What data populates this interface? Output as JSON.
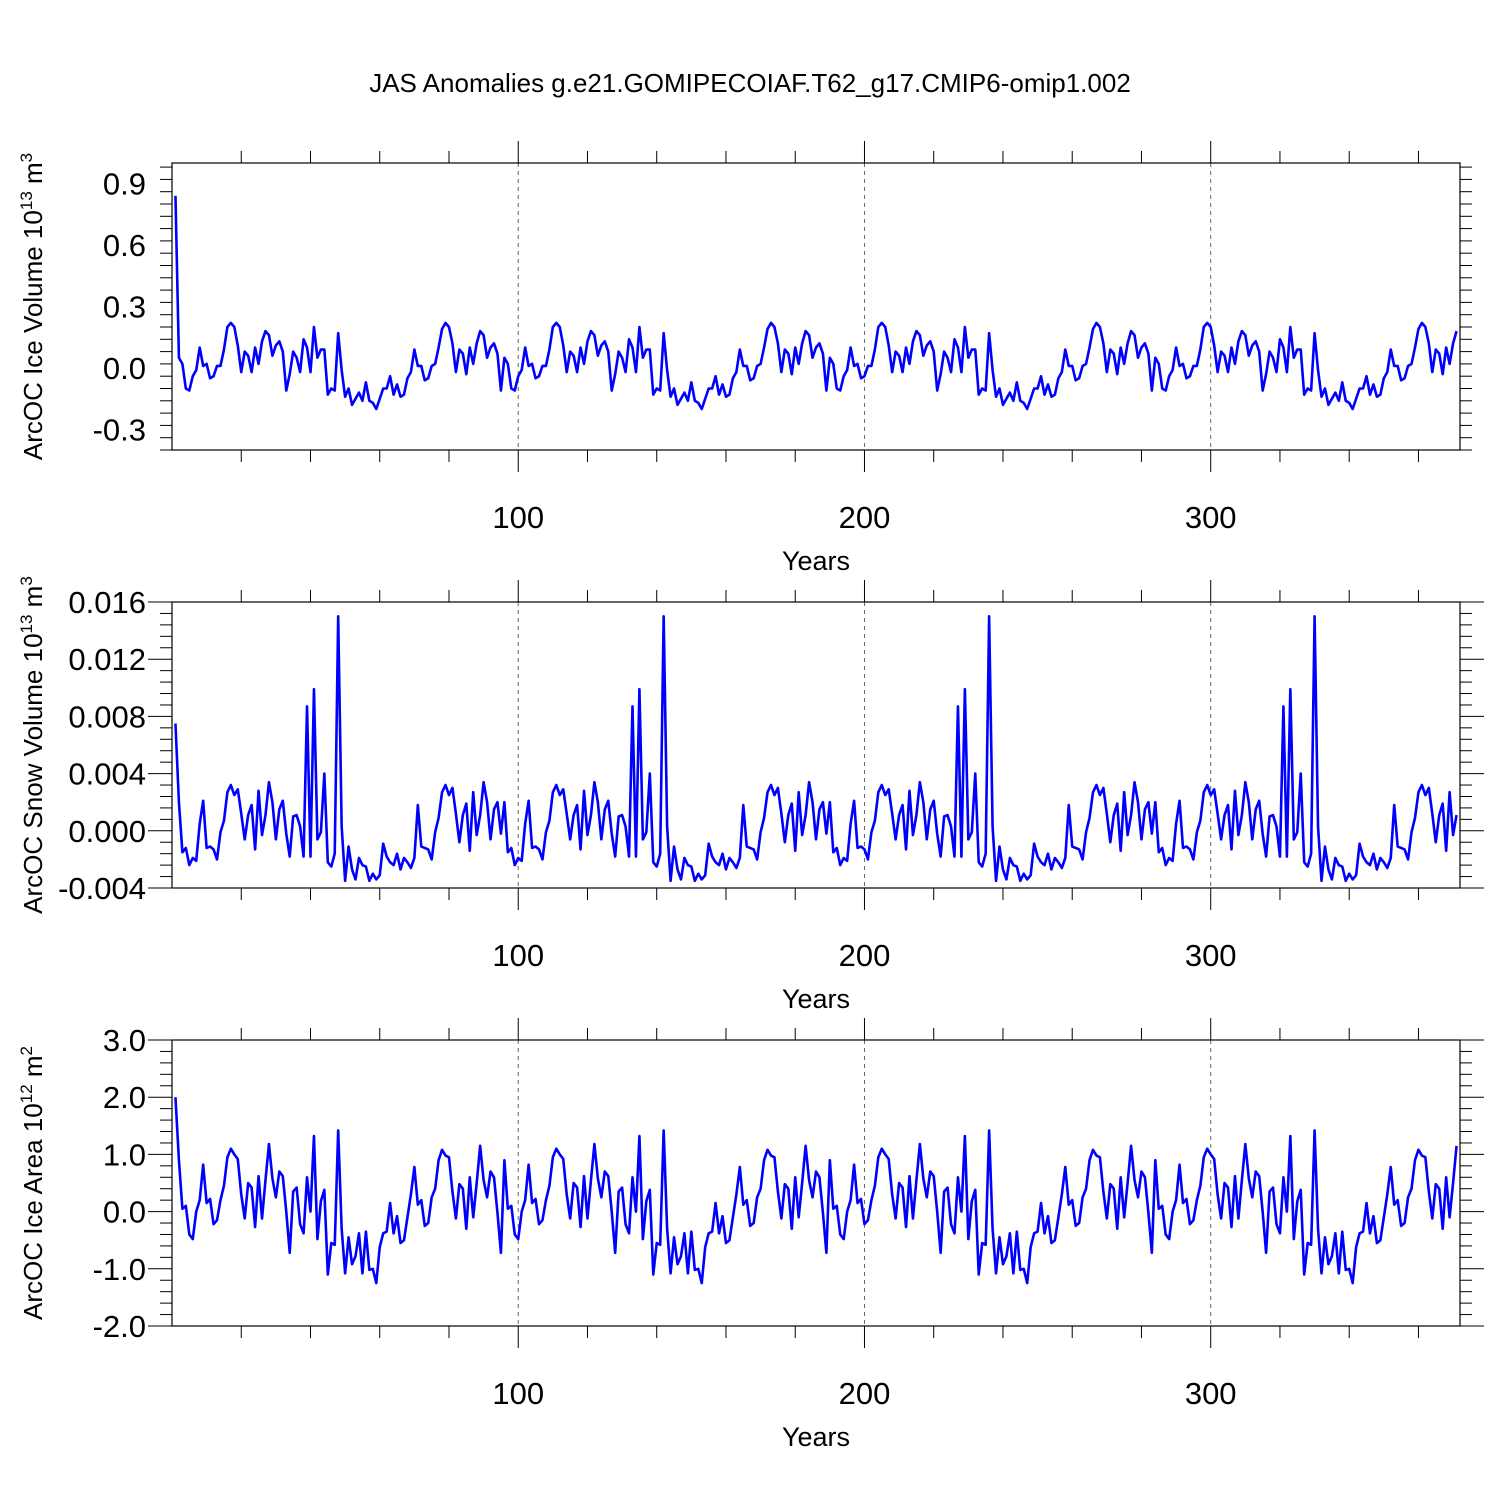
{
  "title": "JAS Anomalies g.e21.GOMIPECOIAF.T62_g17.CMIP6-omip1.002",
  "colors": {
    "line": "#0000ff",
    "axis": "#000000",
    "grid": "#666666"
  },
  "chart_data": [
    {
      "type": "line",
      "ylabel": "ArcOC Ice Volume 10^13 m^3",
      "ylabel_text": "ArcOC Ice Volume 10",
      "ylabel_sup": "13",
      "ylabel_unit": " m",
      "ylabel_unit_sup": "3",
      "xlabel": "Years",
      "xlim": [
        0,
        372
      ],
      "ylim": [
        -0.4,
        1.0
      ],
      "yticks": [
        -0.3,
        0.0,
        0.3,
        0.6,
        0.9
      ],
      "ytick_labels": [
        "-0.3",
        "0.0",
        "0.3",
        "0.6",
        "0.9"
      ],
      "xticks": [
        100,
        200,
        300
      ],
      "xtick_labels": [
        "100",
        "200",
        "300"
      ],
      "grid_x": [
        100,
        200,
        300
      ],
      "start_value": 0.84,
      "cycle": [
        0.05,
        0.02,
        -0.1,
        -0.11,
        -0.04,
        -0.01,
        0.1,
        0.01,
        0.02,
        -0.05,
        -0.04,
        0.01,
        0.01,
        0.09,
        0.2,
        0.22,
        0.2,
        0.11,
        -0.02,
        0.08,
        0.06,
        -0.02,
        0.1,
        0.02,
        0.13,
        0.18,
        0.16,
        0.06,
        0.11,
        0.13,
        0.08,
        -0.11,
        -0.03,
        0.08,
        0.05,
        -0.02,
        0.14,
        0.1,
        -0.02,
        0.2,
        0.05,
        0.09,
        0.09,
        -0.13,
        -0.1,
        -0.11,
        0.17,
        -0.01,
        -0.14,
        -0.1,
        -0.18,
        -0.15,
        -0.12,
        -0.16,
        -0.07,
        -0.16,
        -0.17,
        -0.2,
        -0.15,
        -0.1,
        -0.1,
        -0.04,
        -0.13,
        -0.08,
        -0.14,
        -0.13,
        -0.05,
        -0.02,
        0.09,
        0.01,
        0.01,
        -0.06,
        -0.05,
        0.01,
        0.02,
        0.1,
        0.19,
        0.22,
        0.2,
        0.12,
        -0.02,
        0.09,
        0.07,
        -0.03,
        0.1,
        0.02,
        0.12,
        0.18,
        0.16,
        0.05,
        0.1,
        0.12,
        0.07,
        -0.11
      ]
    },
    {
      "type": "line",
      "ylabel": "ArcOC Snow Volume 10^13 m^3",
      "ylabel_text": "ArcOC Snow Volume 10",
      "ylabel_sup": "13",
      "ylabel_unit": " m",
      "ylabel_unit_sup": "3",
      "xlabel": "Years",
      "xlim": [
        0,
        372
      ],
      "ylim": [
        -0.004,
        0.016
      ],
      "yticks": [
        -0.004,
        0.0,
        0.004,
        0.008,
        0.012,
        0.016
      ],
      "ytick_labels": [
        "-0.004",
        "0.000",
        "0.004",
        "0.008",
        "0.012",
        "0.016"
      ],
      "xticks": [
        100,
        200,
        300
      ],
      "xtick_labels": [
        "100",
        "200",
        "300"
      ],
      "grid_x": [
        100,
        200,
        300
      ],
      "start_value": 0.0075,
      "cycle": [
        0.002,
        -0.0015,
        -0.0012,
        -0.0024,
        -0.0019,
        -0.0021,
        0.0005,
        0.0021,
        -0.0012,
        -0.0011,
        -0.0013,
        -0.002,
        -0.0001,
        0.0007,
        0.0027,
        0.0032,
        0.0025,
        0.0029,
        0.0012,
        -0.0006,
        0.0011,
        0.0018,
        -0.0013,
        0.0028,
        -0.0003,
        0.0011,
        0.0034,
        0.002,
        -0.0006,
        0.0015,
        0.0021,
        -0.0002,
        -0.0018,
        0.001,
        0.0011,
        0.0003,
        -0.0018,
        0.0087,
        -0.0018,
        0.0099,
        -0.0006,
        -0.0001,
        0.004,
        -0.0022,
        -0.0025,
        -0.0016,
        0.015,
        0.0003,
        -0.0035,
        -0.0011,
        -0.0027,
        -0.0034,
        -0.0019,
        -0.0024,
        -0.0025,
        -0.0035,
        -0.003,
        -0.0034,
        -0.0031,
        -0.0009,
        -0.0018,
        -0.0022,
        -0.0024,
        -0.0016,
        -0.0027,
        -0.0019,
        -0.0022,
        -0.0026,
        -0.0019,
        0.0018,
        -0.0011,
        -0.0012,
        -0.0013,
        -0.002,
        -0.0001,
        0.0009,
        0.0027,
        0.0032,
        0.0025,
        0.003,
        0.0012,
        -0.0008,
        0.0011,
        0.0019,
        -0.0014,
        0.0027,
        -0.0003,
        0.0011,
        0.0034,
        0.002,
        -0.0006,
        0.0015,
        0.002,
        -0.0002
      ]
    },
    {
      "type": "line",
      "ylabel": "ArcOC Ice Area 10^12 m^2",
      "ylabel_text": "ArcOC Ice Area 10",
      "ylabel_sup": "12",
      "ylabel_unit": " m",
      "ylabel_unit_sup": "2",
      "xlabel": "Years",
      "xlim": [
        0,
        372
      ],
      "ylim": [
        -2.0,
        3.0
      ],
      "yticks": [
        -2.0,
        -1.0,
        0.0,
        1.0,
        2.0,
        3.0
      ],
      "ytick_labels": [
        "-2.0",
        "-1.0",
        "0.0",
        "1.0",
        "2.0",
        "3.0"
      ],
      "xticks": [
        100,
        200,
        300
      ],
      "xtick_labels": [
        "100",
        "200",
        "300"
      ],
      "grid_x": [
        100,
        200,
        300
      ],
      "start_value": 2.0,
      "cycle": [
        0.9,
        0.05,
        0.1,
        -0.4,
        -0.48,
        0.0,
        0.2,
        0.82,
        0.15,
        0.22,
        -0.22,
        -0.15,
        0.2,
        0.45,
        0.95,
        1.1,
        1.0,
        0.92,
        0.3,
        -0.12,
        0.5,
        0.42,
        -0.27,
        0.62,
        -0.12,
        0.55,
        1.18,
        0.58,
        0.25,
        0.7,
        0.62,
        0.0,
        -0.72,
        0.35,
        0.42,
        -0.22,
        -0.38,
        0.6,
        0.0,
        1.32,
        -0.48,
        0.18,
        0.38,
        -1.1,
        -0.55,
        -0.58,
        1.42,
        -0.3,
        -1.08,
        -0.45,
        -0.92,
        -0.78,
        -0.38,
        -1.08,
        -0.35,
        -1.02,
        -1.0,
        -1.25,
        -0.62,
        -0.38,
        -0.35,
        0.15,
        -0.38,
        -0.08,
        -0.55,
        -0.5,
        -0.1,
        0.3,
        0.78,
        0.12,
        0.2,
        -0.25,
        -0.2,
        0.25,
        0.4,
        0.9,
        1.08,
        0.98,
        0.95,
        0.35,
        -0.12,
        0.48,
        0.4,
        -0.3,
        0.6,
        -0.1,
        0.5,
        1.15,
        0.55,
        0.25,
        0.7,
        0.6,
        -0.02,
        -0.72
      ]
    }
  ]
}
